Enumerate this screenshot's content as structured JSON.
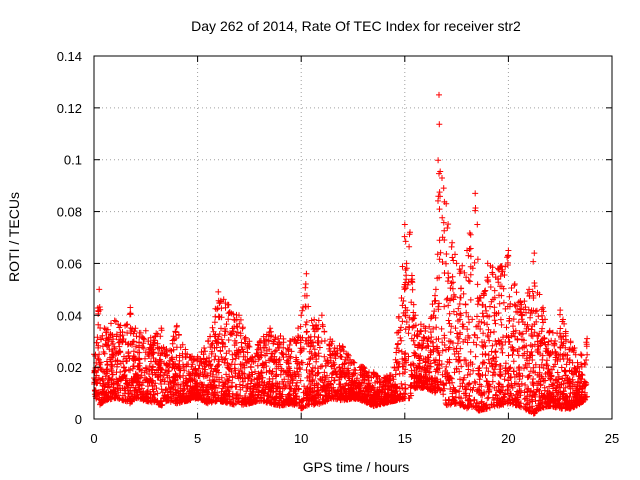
{
  "chart_data": {
    "type": "scatter",
    "title": "Day 262 of 2014, Rate Of TEC Index for receiver str2",
    "xlabel": "GPS time / hours",
    "ylabel": "ROTI / TECUs",
    "xlim": [
      0,
      25
    ],
    "ylim": [
      0,
      0.14
    ],
    "x_ticks": [
      0,
      5,
      10,
      15,
      20,
      25
    ],
    "x_tick_labels": [
      "0",
      "5",
      "10",
      "15",
      "20",
      "25"
    ],
    "y_ticks": [
      0,
      0.02,
      0.04,
      0.06,
      0.08,
      0.1,
      0.12,
      0.14
    ],
    "y_tick_labels": [
      "0",
      "0.02",
      "0.04",
      "0.06",
      "0.08",
      "0.1",
      "0.12",
      "0.14"
    ],
    "grid": true,
    "marker": "+",
    "color": "#ff0000",
    "series": [
      {
        "name": "ROTI",
        "envelope_note": "approximate upper/lower envelope of the dense scatter, sampled at x (hours)",
        "x": [
          0,
          0.25,
          0.5,
          1,
          1.5,
          1.75,
          2,
          2.5,
          3,
          3.25,
          3.5,
          4,
          4.5,
          5,
          5.5,
          6,
          6.5,
          7,
          7.5,
          8,
          8.5,
          9,
          9.5,
          10,
          10.25,
          10.5,
          11,
          11.5,
          12,
          12.5,
          13,
          13.5,
          14,
          14.5,
          15,
          15.25,
          15.5,
          16,
          16.5,
          16.65,
          17,
          17.5,
          18,
          18.4,
          18.5,
          19,
          19.5,
          20,
          20.5,
          21,
          21.25,
          21.5,
          22,
          22.5,
          23,
          23.5,
          23.8
        ],
        "upper": [
          0.025,
          0.05,
          0.035,
          0.038,
          0.036,
          0.043,
          0.035,
          0.034,
          0.033,
          0.035,
          0.027,
          0.036,
          0.025,
          0.024,
          0.03,
          0.049,
          0.044,
          0.04,
          0.03,
          0.03,
          0.035,
          0.032,
          0.03,
          0.04,
          0.056,
          0.038,
          0.04,
          0.03,
          0.028,
          0.022,
          0.02,
          0.018,
          0.016,
          0.02,
          0.075,
          0.072,
          0.04,
          0.035,
          0.05,
          0.125,
          0.083,
          0.06,
          0.065,
          0.087,
          0.075,
          0.06,
          0.058,
          0.065,
          0.045,
          0.05,
          0.064,
          0.048,
          0.034,
          0.042,
          0.03,
          0.025,
          0.031
        ],
        "lower": [
          0.01,
          0.005,
          0.007,
          0.008,
          0.007,
          0.006,
          0.008,
          0.007,
          0.006,
          0.005,
          0.007,
          0.006,
          0.007,
          0.008,
          0.006,
          0.007,
          0.006,
          0.005,
          0.006,
          0.007,
          0.006,
          0.005,
          0.006,
          0.004,
          0.005,
          0.005,
          0.006,
          0.008,
          0.007,
          0.008,
          0.007,
          0.005,
          0.006,
          0.007,
          0.008,
          0.008,
          0.012,
          0.012,
          0.01,
          0.012,
          0.005,
          0.006,
          0.004,
          0.005,
          0.003,
          0.004,
          0.005,
          0.006,
          0.005,
          0.003,
          0.002,
          0.004,
          0.005,
          0.004,
          0.004,
          0.006,
          0.008
        ]
      }
    ]
  }
}
